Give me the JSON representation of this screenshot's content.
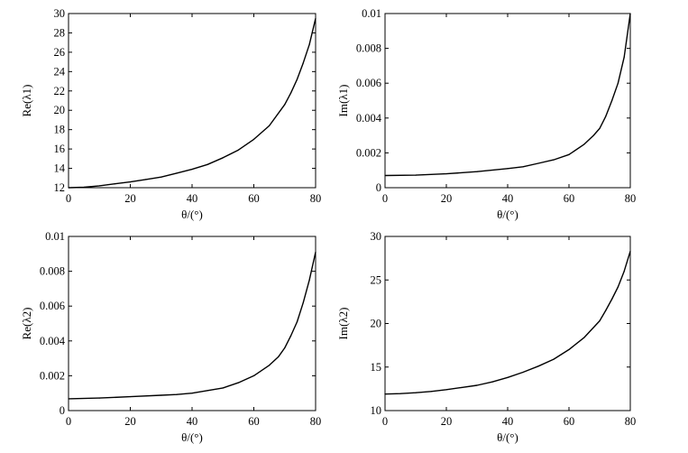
{
  "chart_data": [
    {
      "type": "line",
      "xlabel": "θ/(°)",
      "ylabel": "Re(λ1)",
      "xlim": [
        0,
        80
      ],
      "ylim": [
        12,
        30
      ],
      "xticks": [
        "0",
        "20",
        "40",
        "60",
        "80"
      ],
      "yticks": [
        "12",
        "14",
        "16",
        "18",
        "20",
        "22",
        "24",
        "26",
        "28",
        "30"
      ],
      "grid": false,
      "x": [
        0,
        5,
        10,
        15,
        20,
        25,
        30,
        35,
        40,
        45,
        50,
        55,
        60,
        65,
        70,
        72,
        74,
        76,
        78,
        80
      ],
      "series": [
        {
          "values": [
            12.0,
            12.05,
            12.2,
            12.4,
            12.6,
            12.85,
            13.1,
            13.5,
            13.9,
            14.4,
            15.1,
            15.9,
            17.0,
            18.4,
            20.6,
            21.8,
            23.2,
            24.9,
            26.8,
            29.5
          ]
        }
      ]
    },
    {
      "type": "line",
      "xlabel": "θ/(°)",
      "ylabel": "Im(λ1)",
      "xlim": [
        0,
        80
      ],
      "ylim": [
        0,
        0.01
      ],
      "xticks": [
        "0",
        "20",
        "40",
        "60",
        "80"
      ],
      "yticks": [
        "0",
        "0.002",
        "0.004",
        "0.006",
        "0.008",
        "0.01"
      ],
      "grid": false,
      "x": [
        0,
        10,
        20,
        30,
        40,
        45,
        50,
        55,
        60,
        65,
        68,
        70,
        72,
        74,
        76,
        78,
        80
      ],
      "series": [
        {
          "values": [
            0.0007,
            0.00072,
            0.0008,
            0.00092,
            0.0011,
            0.0012,
            0.0014,
            0.0016,
            0.0019,
            0.0025,
            0.003,
            0.0034,
            0.0041,
            0.005,
            0.006,
            0.0075,
            0.01
          ]
        }
      ]
    },
    {
      "type": "line",
      "xlabel": "θ/(°)",
      "ylabel": "Re(λ2)",
      "xlim": [
        0,
        80
      ],
      "ylim": [
        0,
        0.01
      ],
      "xticks": [
        "0",
        "20",
        "40",
        "60",
        "80"
      ],
      "yticks": [
        "0",
        "0.002",
        "0.004",
        "0.006",
        "0.008",
        "0.01"
      ],
      "grid": false,
      "x": [
        0,
        10,
        20,
        30,
        35,
        40,
        45,
        50,
        55,
        60,
        65,
        68,
        70,
        72,
        74,
        76,
        78,
        80
      ],
      "series": [
        {
          "values": [
            0.00068,
            0.00072,
            0.0008,
            0.00088,
            0.00092,
            0.001,
            0.00115,
            0.0013,
            0.0016,
            0.002,
            0.0026,
            0.0031,
            0.0036,
            0.0043,
            0.0051,
            0.0062,
            0.0075,
            0.0091
          ]
        }
      ]
    },
    {
      "type": "line",
      "xlabel": "θ/(°)",
      "ylabel": "Im(λ2)",
      "xlim": [
        0,
        80
      ],
      "ylim": [
        10,
        30
      ],
      "xticks": [
        "0",
        "20",
        "40",
        "60",
        "80"
      ],
      "yticks": [
        "10",
        "15",
        "20",
        "25",
        "30"
      ],
      "grid": false,
      "x": [
        0,
        5,
        10,
        15,
        20,
        25,
        30,
        35,
        40,
        45,
        50,
        55,
        60,
        65,
        70,
        72,
        74,
        76,
        78,
        80
      ],
      "series": [
        {
          "values": [
            11.9,
            11.95,
            12.05,
            12.2,
            12.4,
            12.65,
            12.9,
            13.3,
            13.8,
            14.4,
            15.1,
            15.9,
            17.0,
            18.4,
            20.3,
            21.5,
            22.8,
            24.2,
            26.0,
            28.3
          ]
        }
      ]
    }
  ]
}
